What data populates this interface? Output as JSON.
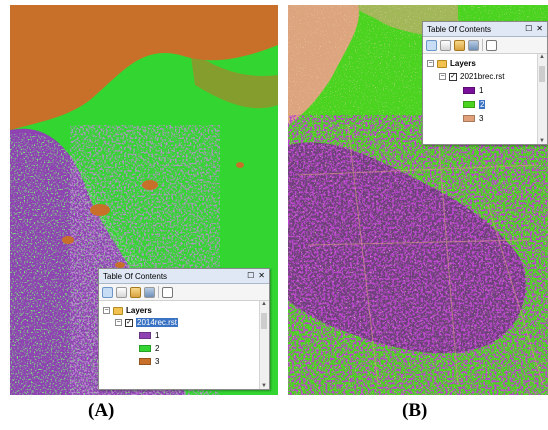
{
  "panels": [
    {
      "caption": "(A)",
      "toc": {
        "title": "Table Of Contents",
        "layers_label": "Layers",
        "raster_name": "2014rec.rst",
        "classes": [
          {
            "label": "1",
            "color": "#8f43b3"
          },
          {
            "label": "2",
            "color": "#33d631"
          },
          {
            "label": "3",
            "color": "#c8702a"
          }
        ]
      }
    },
    {
      "caption": "(B)",
      "toc": {
        "title": "Table Of Contents",
        "layers_label": "Layers",
        "raster_name": "2021brec.rst",
        "classes": [
          {
            "label": "1",
            "color": "#7a0f9a"
          },
          {
            "label": "2",
            "color": "#4bd41f"
          },
          {
            "label": "3",
            "color": "#e0a07a"
          }
        ]
      }
    }
  ],
  "colors": {
    "purple_a": "#8f43b3",
    "green_a": "#33d631",
    "brown_a": "#c8702a",
    "purple_b": "#7a0f9a",
    "green_b": "#4bd41f",
    "tan_b": "#dca57e"
  }
}
